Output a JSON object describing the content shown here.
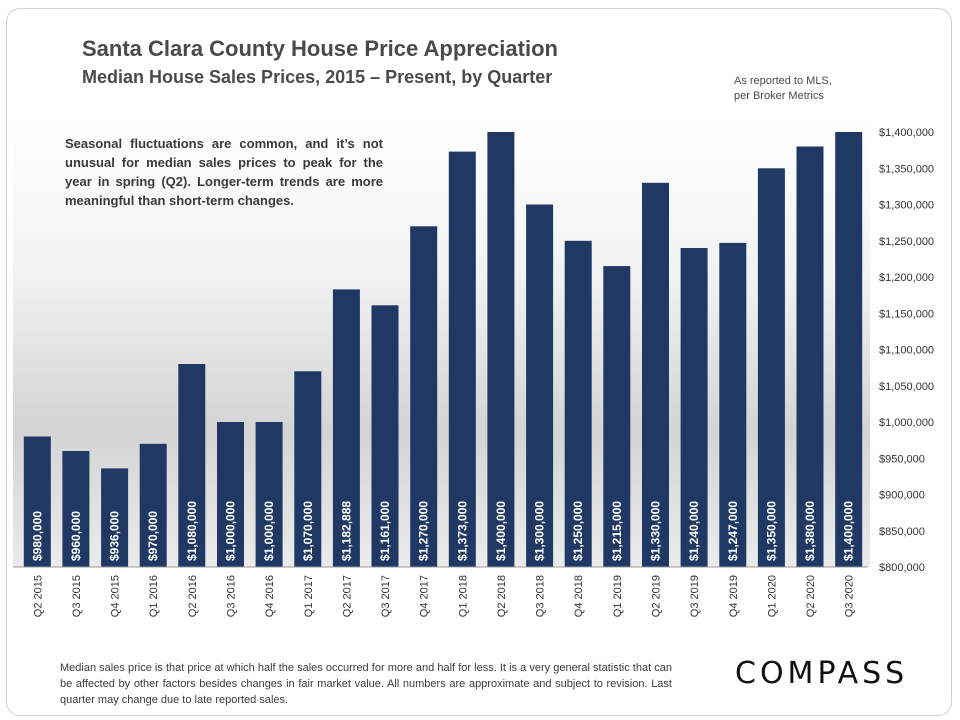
{
  "title": "Santa Clara County House Price Appreciation",
  "subtitle": "Median House Sales Prices, 2015 – Present, by Quarter",
  "source_note": [
    "As reported to MLS,",
    "per Broker Metrics"
  ],
  "annotation": "Seasonal fluctuations are common, and it’s not unusual for median sales prices to peak for the year in spring (Q2). Longer-term trends are more meaningful than short-term changes.",
  "footnote": "Median sales price is that price at which half the sales occurred for more and half for less. It is a very general statistic that can be affected by other factors besides changes in fair market value. All numbers are approximate and subject to revision. Last quarter may change due to late reported sales.",
  "logo_text": "COMPASS",
  "colors": {
    "bar": "#1f3864",
    "bar_label": "#ffffff",
    "axis_text": "#333333"
  },
  "chart_data": {
    "type": "bar",
    "categories": [
      "Q2 2015",
      "Q3 2015",
      "Q4 2015",
      "Q1 2016",
      "Q2 2016",
      "Q3 2016",
      "Q4 2016",
      "Q1 2017",
      "Q2 2017",
      "Q3 2017",
      "Q4 2017",
      "Q1 2018",
      "Q2 2018",
      "Q3 2018",
      "Q4 2018",
      "Q1 2019",
      "Q2 2019",
      "Q3 2019",
      "Q4 2019",
      "Q1 2020",
      "Q2 2020",
      "Q3 2020"
    ],
    "values": [
      980000,
      960000,
      936000,
      970000,
      1080000,
      1000000,
      1000000,
      1070000,
      1182888,
      1161000,
      1270000,
      1373000,
      1400000,
      1300000,
      1250000,
      1215000,
      1330000,
      1240000,
      1247000,
      1350000,
      1380000,
      1400000
    ],
    "data_labels": [
      "$980,000",
      "$960,000",
      "$936,000",
      "$970,000",
      "$1,080,000",
      "$1,000,000",
      "$1,000,000",
      "$1,070,000",
      "$1,182,888",
      "$1,161,000",
      "$1,270,000",
      "$1,373,000",
      "$1,400,000",
      "$1,300,000",
      "$1,250,000",
      "$1,215,000",
      "$1,330,000",
      "$1,240,000",
      "$1,247,000",
      "$1,350,000",
      "$1,380,000",
      "$1,400,000"
    ],
    "ylim": [
      800000,
      1400000
    ],
    "y_ticks": [
      800000,
      850000,
      900000,
      950000,
      1000000,
      1050000,
      1100000,
      1150000,
      1200000,
      1250000,
      1300000,
      1350000,
      1400000
    ],
    "y_tick_labels": [
      "$800,000",
      "$850,000",
      "$900,000",
      "$950,000",
      "$1,000,000",
      "$1,050,000",
      "$1,100,000",
      "$1,150,000",
      "$1,200,000",
      "$1,250,000",
      "$1,300,000",
      "$1,350,000",
      "$1,400,000"
    ],
    "y_axis_side": "right",
    "grid": false,
    "legend": "none"
  }
}
